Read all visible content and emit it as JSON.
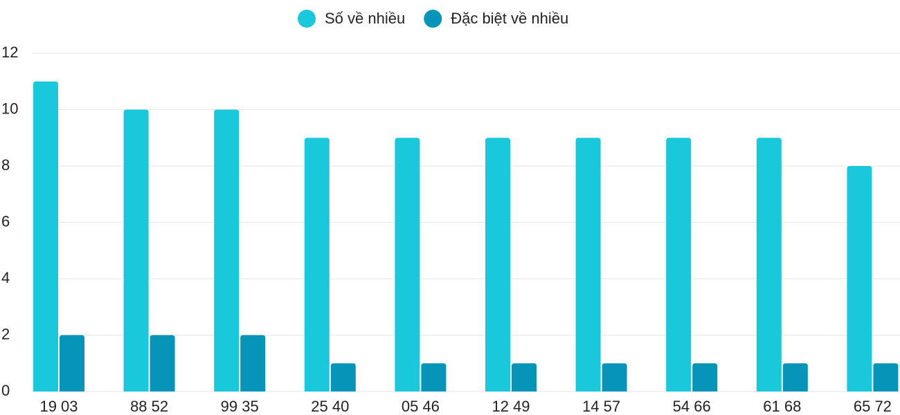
{
  "chart_data": {
    "type": "bar",
    "categories": [
      "19 03",
      "88 52",
      "99 35",
      "25 40",
      "05 46",
      "12 49",
      "14 57",
      "54 66",
      "61 68",
      "65 72"
    ],
    "series": [
      {
        "name": "Số về nhiều",
        "color": "#1ac8db",
        "values": [
          11,
          10,
          10,
          9,
          9,
          9,
          9,
          9,
          9,
          8
        ]
      },
      {
        "name": "Đặc biệt về nhiều",
        "color": "#0695b8",
        "values": [
          2,
          2,
          2,
          1,
          1,
          1,
          1,
          1,
          1,
          1
        ]
      }
    ],
    "ylim": [
      0,
      12
    ],
    "yticks": [
      0,
      2,
      4,
      6,
      8,
      10,
      12
    ],
    "grid": true,
    "legend": "top"
  }
}
